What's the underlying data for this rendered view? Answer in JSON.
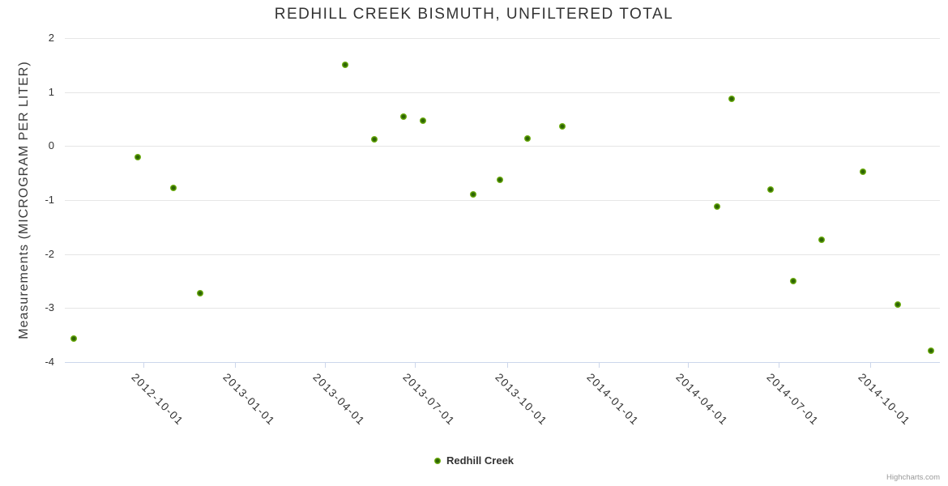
{
  "credits": "Highcharts.com",
  "chart_data": {
    "type": "scatter",
    "title": "REDHILL CREEK BISMUTH, UNFILTERED TOTAL",
    "xlabel": "",
    "ylabel": "Measurements (MICROGRAM PER LITER)",
    "ylim": [
      -4,
      2
    ],
    "y_ticks": [
      2,
      1,
      0,
      -1,
      -2,
      -3,
      -4
    ],
    "x_range": [
      "2012-07-14",
      "2014-12-10"
    ],
    "x_ticks": [
      "2012-10-01",
      "2013-01-01",
      "2013-04-01",
      "2013-07-01",
      "2013-10-01",
      "2014-01-01",
      "2014-04-01",
      "2014-07-01",
      "2014-10-01"
    ],
    "grid": "horizontal-only",
    "legend_position": "bottom-center",
    "marker_color_hex": "#69aa0a",
    "marker_edge_hex": "#8cc43c",
    "marker_center_hex": "#2d6405",
    "series": [
      {
        "name": "Redhill Creek",
        "points": [
          {
            "date": "2012-07-23",
            "value": -3.56
          },
          {
            "date": "2012-09-25",
            "value": -0.21
          },
          {
            "date": "2012-10-31",
            "value": -0.78
          },
          {
            "date": "2012-11-27",
            "value": -2.73
          },
          {
            "date": "2013-04-22",
            "value": 1.5
          },
          {
            "date": "2013-05-21",
            "value": 0.12
          },
          {
            "date": "2013-06-19",
            "value": 0.54
          },
          {
            "date": "2013-07-09",
            "value": 0.47
          },
          {
            "date": "2013-08-28",
            "value": -0.9
          },
          {
            "date": "2013-09-24",
            "value": -0.63
          },
          {
            "date": "2013-10-22",
            "value": 0.14
          },
          {
            "date": "2013-11-26",
            "value": 0.36
          },
          {
            "date": "2014-04-30",
            "value": -1.12
          },
          {
            "date": "2014-05-15",
            "value": 0.87
          },
          {
            "date": "2014-06-23",
            "value": -0.81
          },
          {
            "date": "2014-07-16",
            "value": -2.5
          },
          {
            "date": "2014-08-13",
            "value": -1.74
          },
          {
            "date": "2014-09-24",
            "value": -0.48
          },
          {
            "date": "2014-10-29",
            "value": -2.94
          },
          {
            "date": "2014-12-01",
            "value": -3.79
          }
        ]
      }
    ]
  }
}
